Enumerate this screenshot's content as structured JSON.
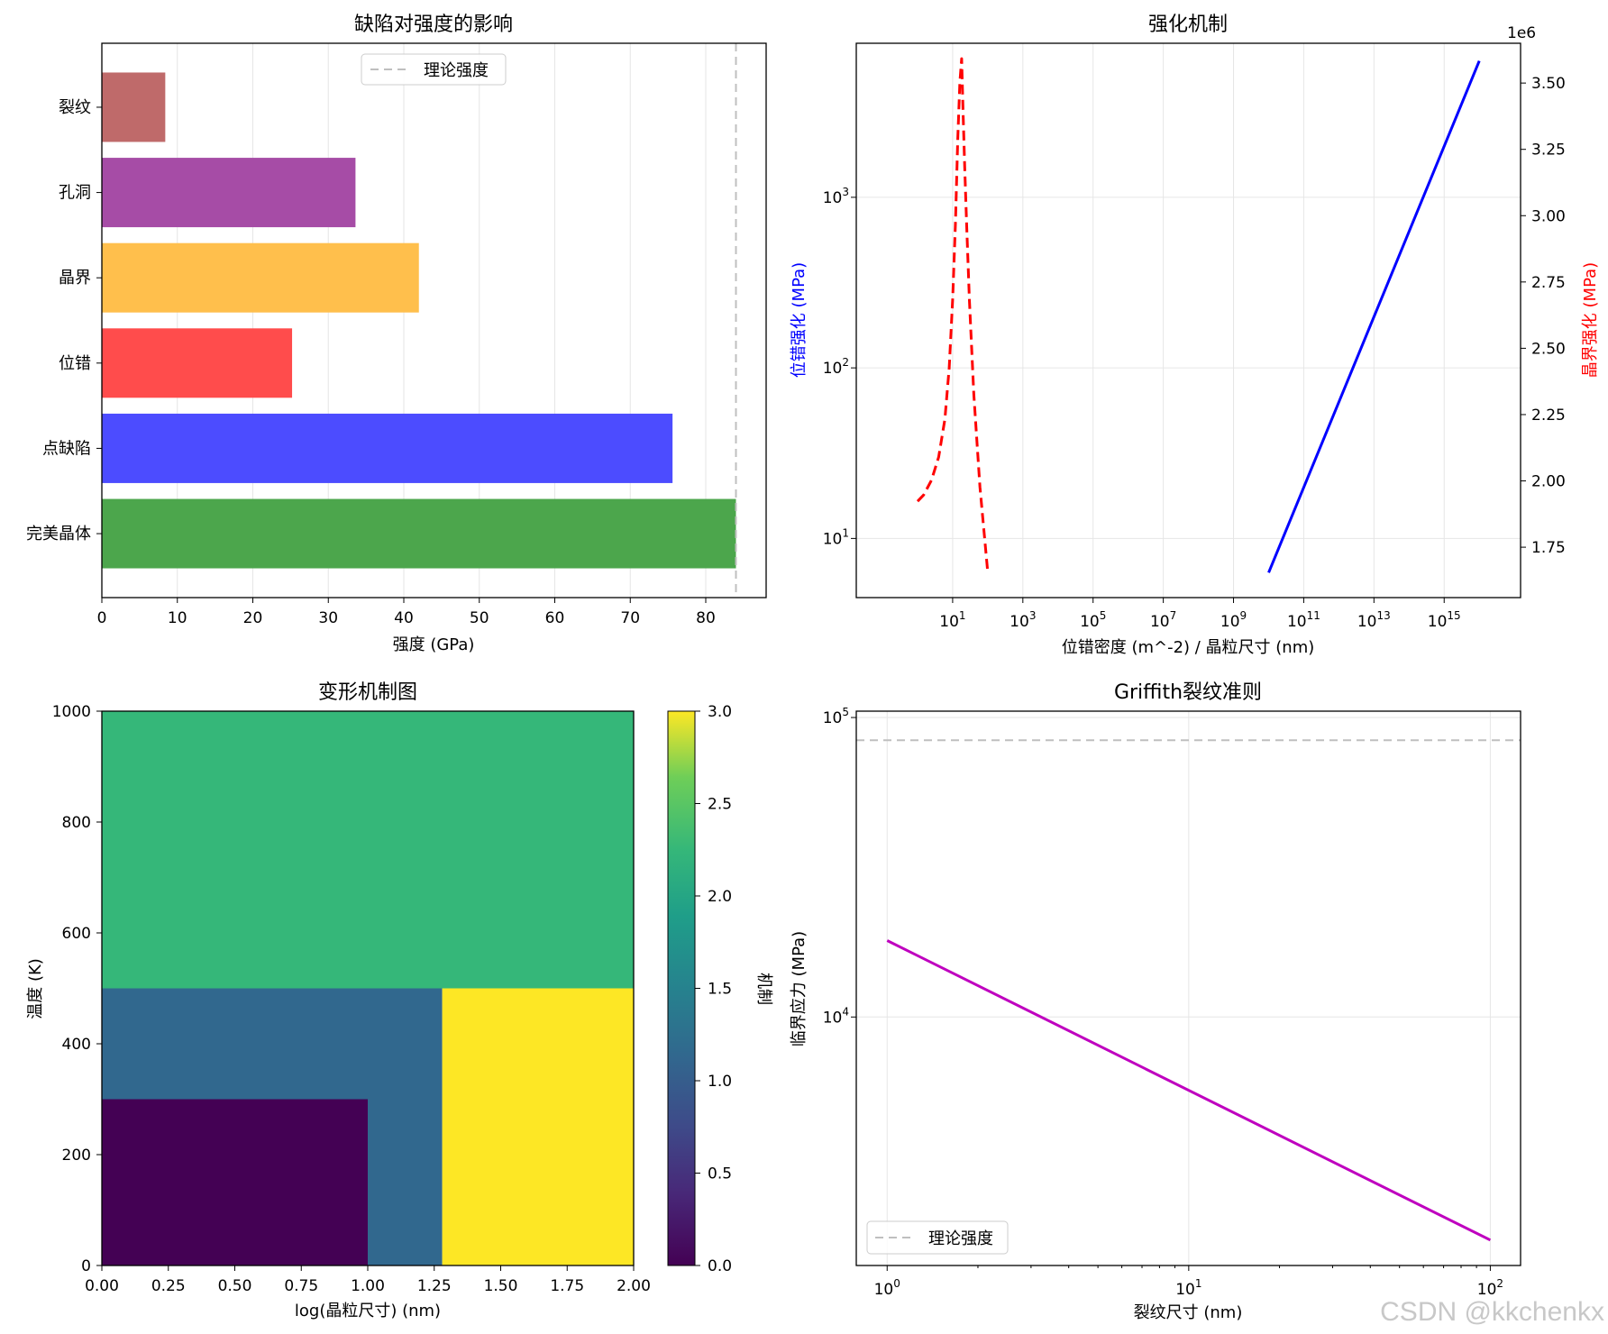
{
  "chart_data": [
    {
      "id": "defects",
      "type": "bar",
      "orientation": "horizontal",
      "title": "缺陷对强度的影响",
      "xlabel": "强度 (GPa)",
      "ylabel": "",
      "xlim": [
        0,
        88
      ],
      "xticks": [
        0,
        10,
        20,
        30,
        40,
        50,
        60,
        70,
        80
      ],
      "categories": [
        "完美晶体",
        "点缺陷",
        "位错",
        "晶界",
        "孔洞",
        "裂纹"
      ],
      "values": [
        84,
        75.6,
        25.2,
        42,
        33.6,
        8.4
      ],
      "colors": [
        "#4ca64c",
        "#4c4cff",
        "#ff4c4c",
        "#ffbf4c",
        "#a64ca6",
        "#bf6a6a"
      ],
      "reference_line": {
        "value": 84,
        "label": "理论强度",
        "color": "#bfbfbf"
      },
      "legend": {
        "position": "top-center",
        "entries": [
          "理论强度"
        ]
      },
      "grid": true
    },
    {
      "id": "strengthening",
      "type": "line",
      "title": "强化机制",
      "xlabel": "位错密度 (m^-2) / 晶粒尺寸 (nm)",
      "xscale": "log",
      "xlim": [
        0.018,
        1.5e+17
      ],
      "xticks": [
        "10^1",
        "10^3",
        "10^5",
        "10^7",
        "10^9",
        "10^11",
        "10^13",
        "10^15"
      ],
      "left_axis": {
        "label": "位错强化 (MPa)",
        "color": "#0000ff",
        "scale": "log",
        "ylim": [
          4.5,
          8000
        ],
        "ticks": [
          "10^1",
          "10^2",
          "10^3"
        ]
      },
      "right_axis": {
        "label": "晶界强化 (MPa)",
        "color": "#ff0000",
        "scale": "linear",
        "ylim": [
          1.56,
          3.65
        ],
        "ticks": [
          "1.75",
          "2.00",
          "2.25",
          "2.50",
          "2.75",
          "3.00",
          "3.25",
          "3.50"
        ],
        "offset_text": "1e6"
      },
      "series": [
        {
          "name": "位错强化",
          "axis": "left",
          "color": "#0000ff",
          "style": "solid",
          "x": [
            10000000000.0,
            1e+16
          ],
          "y": [
            6.3,
            6300
          ]
        },
        {
          "name": "晶界强化",
          "axis": "left",
          "color": "#ff0000",
          "style": "dashed",
          "x": [
            1,
            1.5,
            2.5,
            4,
            6,
            8,
            10,
            12,
            14,
            16,
            18,
            20,
            22,
            25,
            30,
            40,
            60,
            100
          ],
          "y": [
            16.5,
            18,
            22,
            30,
            50,
            100,
            250,
            700,
            2200,
            4700,
            6500,
            3000,
            1500,
            700,
            250,
            70,
            20,
            6.3
          ]
        }
      ],
      "grid": true
    },
    {
      "id": "deformation-map",
      "type": "heatmap",
      "title": "变形机制图",
      "xlabel": "log(晶粒尺寸) (nm)",
      "ylabel": "温度 (K)",
      "xlim": [
        0,
        2
      ],
      "ylim": [
        0,
        1000
      ],
      "xticks": [
        "0.00",
        "0.25",
        "0.50",
        "0.75",
        "1.00",
        "1.25",
        "1.50",
        "1.75",
        "2.00"
      ],
      "yticks": [
        "0",
        "200",
        "400",
        "600",
        "800",
        "1000"
      ],
      "regions": [
        {
          "x0": 0,
          "x1": 2,
          "y0": 500,
          "y1": 1000,
          "value": 2
        },
        {
          "x0": 0,
          "x1": 1.28,
          "y0": 300,
          "y1": 500,
          "value": 1
        },
        {
          "x0": 1,
          "x1": 1.28,
          "y0": 0,
          "y1": 300,
          "value": 1
        },
        {
          "x0": 0,
          "x1": 1,
          "y0": 0,
          "y1": 300,
          "value": 0
        },
        {
          "x0": 1.28,
          "x1": 2,
          "y0": 0,
          "y1": 500,
          "value": 3
        }
      ],
      "colorbar": {
        "label": "机制",
        "range": [
          0,
          3
        ],
        "ticks": [
          "0.0",
          "0.5",
          "1.0",
          "1.5",
          "2.0",
          "2.5",
          "3.0"
        ],
        "colormap": "viridis"
      }
    },
    {
      "id": "griffith",
      "type": "line",
      "title": "Griffith裂纹准则",
      "xlabel": "裂纹尺寸 (nm)",
      "ylabel": "临界应力 (MPa)",
      "xscale": "log",
      "yscale": "log",
      "xlim": [
        0.79,
        126
      ],
      "ylim": [
        1480,
        105000
      ],
      "xticks": [
        "10^0",
        "10^1",
        "10^2"
      ],
      "yticks": [
        "10^4",
        "10^5"
      ],
      "series": [
        {
          "name": "临界应力",
          "color": "#bf00bf",
          "style": "solid",
          "x": [
            1,
            100
          ],
          "y": [
            18000,
            1800
          ]
        }
      ],
      "reference_line": {
        "value": 84000,
        "label": "理论强度",
        "color": "#bfbfbf"
      },
      "legend": {
        "position": "bottom-left",
        "entries": [
          "理论强度"
        ]
      },
      "grid": true
    }
  ],
  "watermark": "CSDN @kkchenkx"
}
